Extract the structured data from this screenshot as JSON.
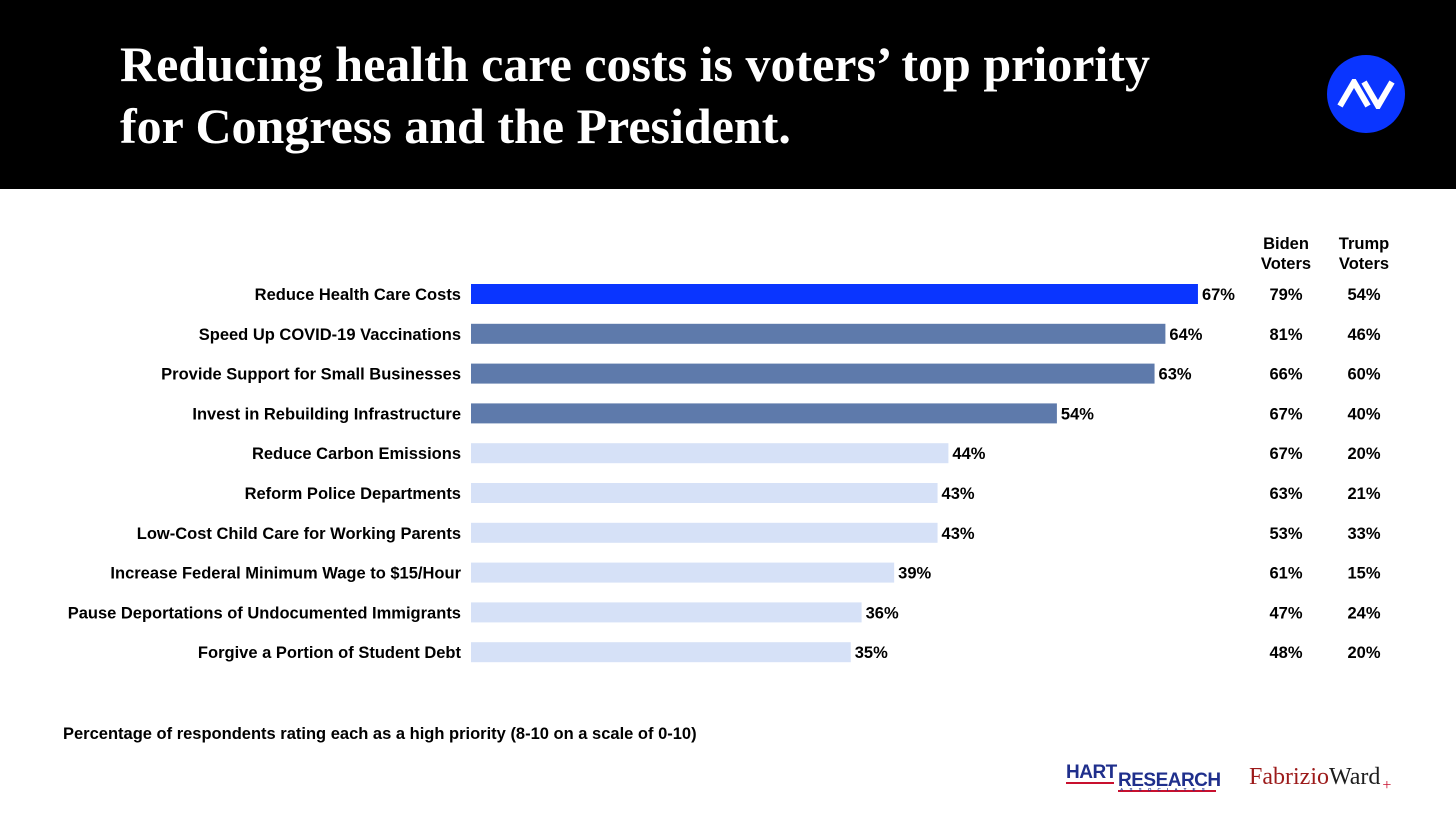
{
  "header": {
    "title_line1": "Reducing health care costs is voters’ top priority",
    "title_line2": "for Congress and the President.",
    "logo_text": "AV"
  },
  "chart_data": {
    "type": "bar",
    "orientation": "horizontal",
    "title": "Reducing health care costs is voters’ top priority for Congress and the President.",
    "xlabel": "",
    "ylabel": "",
    "xlim": [
      0,
      100
    ],
    "grid": false,
    "categories": [
      "Reduce Health Care Costs",
      "Speed Up COVID-19 Vaccinations",
      "Provide Support for Small Businesses",
      "Invest in Rebuilding Infrastructure",
      "Reduce Carbon Emissions",
      "Reform Police Departments",
      "Low-Cost Child Care for Working Parents",
      "Increase Federal Minimum Wage to $15/Hour",
      "Pause Deportations of Undocumented Immigrants",
      "Forgive a Portion of Student Debt"
    ],
    "values": [
      67,
      64,
      63,
      54,
      44,
      43,
      43,
      39,
      36,
      35
    ],
    "value_labels": [
      "67%",
      "64%",
      "63%",
      "54%",
      "44%",
      "43%",
      "43%",
      "39%",
      "36%",
      "35%"
    ],
    "bar_tiers": [
      "top",
      "mid",
      "mid",
      "mid",
      "low",
      "low",
      "low",
      "low",
      "low",
      "low"
    ],
    "colors": {
      "top": "#0a35ff",
      "mid": "#5e7aab",
      "low": "#d6e1f7"
    },
    "table": {
      "columns": [
        {
          "header_line1": "Biden",
          "header_line2": "Voters",
          "values": [
            "79%",
            "81%",
            "66%",
            "67%",
            "67%",
            "63%",
            "53%",
            "61%",
            "47%",
            "48%"
          ]
        },
        {
          "header_line1": "Trump",
          "header_line2": "Voters",
          "values": [
            "54%",
            "46%",
            "60%",
            "40%",
            "20%",
            "21%",
            "33%",
            "15%",
            "24%",
            "20%"
          ]
        }
      ]
    }
  },
  "footnote": "Percentage of respondents rating each as a high priority (8-10 on a scale of 0-10)",
  "logos": {
    "hart_line1": "HART",
    "hart_line2": "RESEARCH",
    "hart_line3": "ASSOCIATES",
    "fw_part1": "Fabrizio",
    "fw_part2": "Ward",
    "fw_part3": "+"
  },
  "colors": {
    "header_bg": "#000000",
    "accent": "#0a35ff"
  }
}
